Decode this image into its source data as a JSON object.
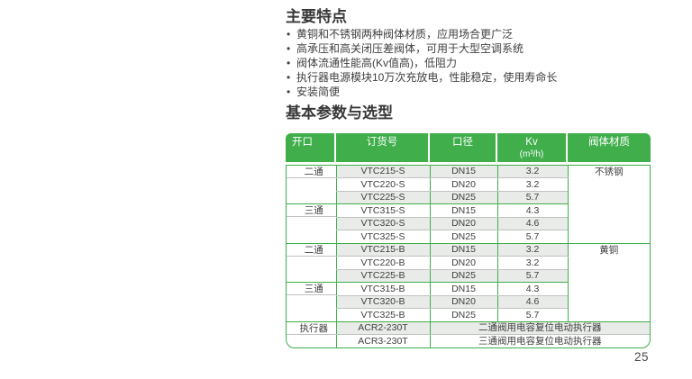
{
  "features": {
    "title": "主要特点",
    "items": [
      "黄铜和不锈钢两种阀体材质，应用场合更广泛",
      "高承压和高关闭压差阀体，可用于大型空调系统",
      "阀体流通性能高(Kv值高)，低阻力",
      "执行器电源模块10万次充放电，性能稳定，使用寿命长",
      "安装简便"
    ]
  },
  "selection": {
    "title": "基本参数与选型"
  },
  "table": {
    "headers": [
      {
        "label": "开口"
      },
      {
        "label": "订货号"
      },
      {
        "label": "口径"
      },
      {
        "label": "Kv",
        "sub": "(m³/h)"
      },
      {
        "label": "阀体材质"
      }
    ],
    "groups": [
      {
        "opening": "二通",
        "material": "不锈钢",
        "material_rows": 6,
        "rows": [
          {
            "order_no": "VTC215-S",
            "diameter": "DN15",
            "kv": "3.2"
          },
          {
            "order_no": "VTC220-S",
            "diameter": "DN20",
            "kv": "3.2"
          },
          {
            "order_no": "VTC225-S",
            "diameter": "DN25",
            "kv": "5.7"
          }
        ]
      },
      {
        "opening": "三通",
        "rows": [
          {
            "order_no": "VTC315-S",
            "diameter": "DN15",
            "kv": "4.3"
          },
          {
            "order_no": "VTC320-S",
            "diameter": "DN20",
            "kv": "4.6"
          },
          {
            "order_no": "VTC325-S",
            "diameter": "DN25",
            "kv": "5.7"
          }
        ]
      },
      {
        "opening": "二通",
        "material": "黄铜",
        "material_rows": 6,
        "rows": [
          {
            "order_no": "VTC215-B",
            "diameter": "DN15",
            "kv": "3.2"
          },
          {
            "order_no": "VTC220-B",
            "diameter": "DN20",
            "kv": "3.2"
          },
          {
            "order_no": "VTC225-B",
            "diameter": "DN25",
            "kv": "5.7"
          }
        ]
      },
      {
        "opening": "三通",
        "rows": [
          {
            "order_no": "VTC315-B",
            "diameter": "DN15",
            "kv": "4.3"
          },
          {
            "order_no": "VTC320-B",
            "diameter": "DN20",
            "kv": "4.6"
          },
          {
            "order_no": "VTC325-B",
            "diameter": "DN25",
            "kv": "5.7"
          }
        ]
      },
      {
        "opening": "执行器",
        "rows": [
          {
            "order_no": "ACR2-230T",
            "description": "二通阀用电容复位电动执行器"
          },
          {
            "order_no": "ACR3-230T",
            "description": "三通阀用电容复位电动执行器"
          }
        ]
      }
    ]
  },
  "page": {
    "number": "25"
  },
  "colors": {
    "green": "#3FAE4B",
    "stripe": "#E8EBE8",
    "row_line": "#BFC3BF",
    "header_text": "#FFFFFF",
    "body_text": "#3E3E3E"
  }
}
